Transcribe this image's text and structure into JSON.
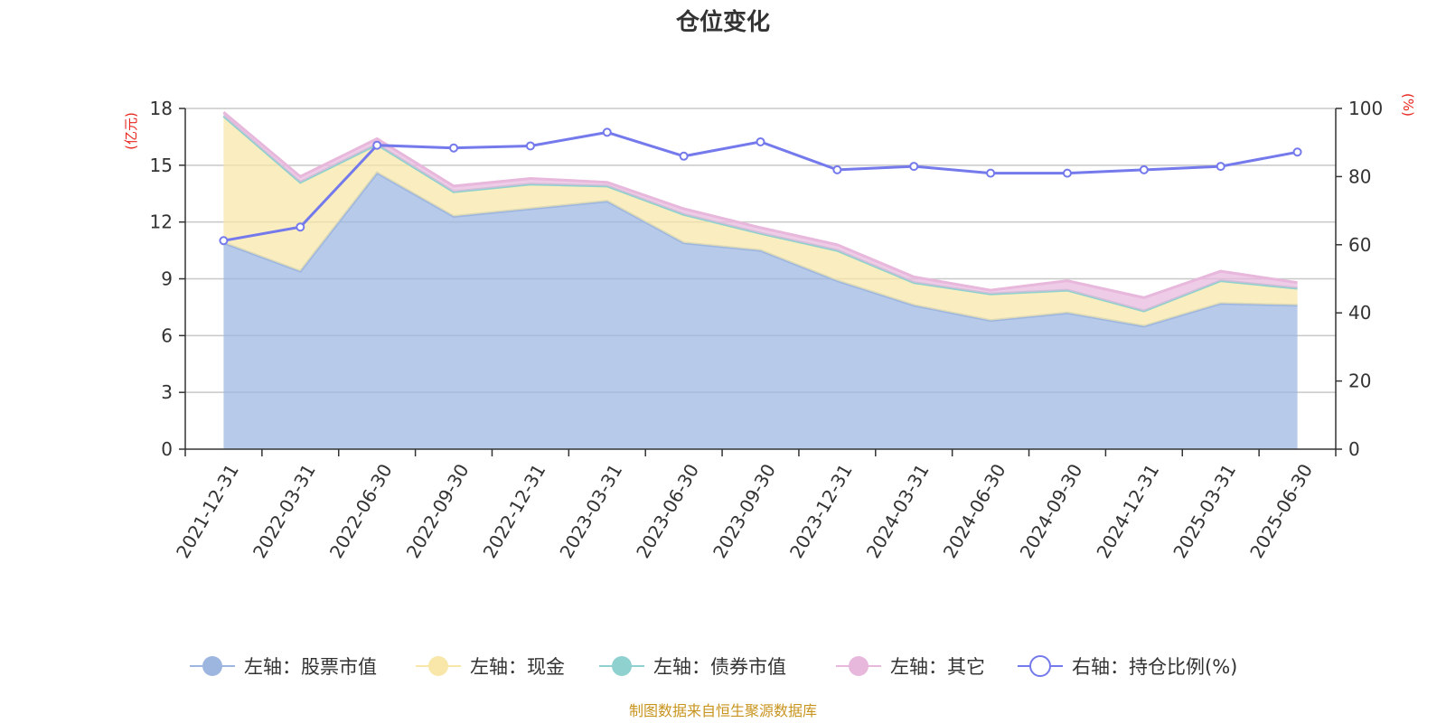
{
  "chart_data": {
    "type": "area",
    "title": "仓位变化",
    "left_axis_unit": "(亿元)",
    "right_axis_unit": "(%)",
    "x": [
      "2021-12-31",
      "2022-03-31",
      "2022-06-30",
      "2022-09-30",
      "2022-12-31",
      "2023-03-31",
      "2023-06-30",
      "2023-09-30",
      "2023-12-31",
      "2024-03-31",
      "2024-06-30",
      "2024-09-30",
      "2024-12-31",
      "2025-03-31",
      "2025-06-30"
    ],
    "left_ylim": [
      0,
      18
    ],
    "left_ticks": [
      "0",
      "3",
      "6",
      "9",
      "12",
      "15",
      "18"
    ],
    "right_ylim": [
      0,
      100
    ],
    "right_ticks": [
      "0",
      "20",
      "40",
      "60",
      "80",
      "100"
    ],
    "stacked": true,
    "grid": true,
    "legend_position": "bottom",
    "series": [
      {
        "name": "左轴：股票市值",
        "axis": "left",
        "kind": "area",
        "color": "#9cb6e0",
        "values": [
          10.9,
          9.4,
          14.6,
          12.3,
          12.7,
          13.1,
          10.9,
          10.5,
          8.9,
          7.6,
          6.8,
          7.2,
          6.5,
          7.7,
          7.6
        ]
      },
      {
        "name": "左轴：现金",
        "axis": "left",
        "kind": "area",
        "color": "#f8e7a8",
        "values": [
          6.7,
          4.7,
          1.5,
          1.3,
          1.3,
          0.8,
          1.5,
          0.9,
          1.6,
          1.2,
          1.4,
          1.2,
          0.8,
          1.2,
          0.9
        ]
      },
      {
        "name": "左轴：债券市值",
        "axis": "left",
        "kind": "area",
        "color": "#8fd1cf",
        "values": [
          0,
          0,
          0,
          0,
          0,
          0,
          0,
          0,
          0,
          0,
          0,
          0,
          0,
          0,
          0
        ]
      },
      {
        "name": "左轴：其它",
        "axis": "left",
        "kind": "area",
        "color": "#e8b7dc",
        "values": [
          0.2,
          0.3,
          0.3,
          0.3,
          0.3,
          0.2,
          0.3,
          0.3,
          0.3,
          0.3,
          0.2,
          0.5,
          0.7,
          0.5,
          0.3
        ]
      },
      {
        "name": "右轴：持仓比例(%)",
        "axis": "right",
        "kind": "line",
        "color": "#7479ec",
        "values": [
          61.2,
          65.2,
          89.2,
          88.4,
          89.0,
          93.0,
          86.0,
          90.2,
          82.0,
          83.0,
          81.0,
          81.0,
          82.0,
          83.0,
          87.2
        ]
      }
    ]
  },
  "footer": {
    "source": "制图数据来自恒生聚源数据库"
  }
}
